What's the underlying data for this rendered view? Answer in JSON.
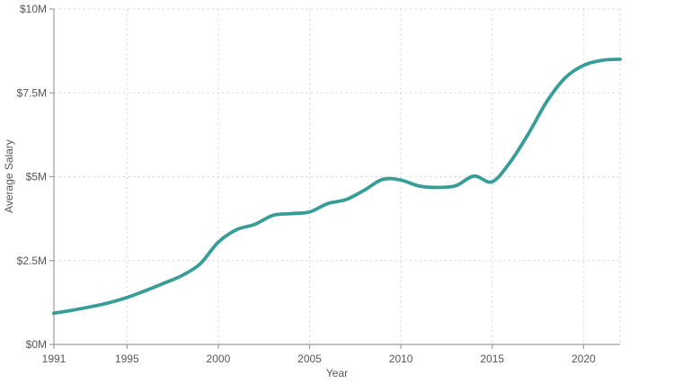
{
  "chart_data": {
    "type": "line",
    "title": "",
    "xlabel": "Year",
    "ylabel": "Average Salary",
    "xlim": [
      1991,
      2022
    ],
    "ylim": [
      0,
      10
    ],
    "grid": "dashed",
    "legend": "none",
    "x_tick_years": [
      1991,
      1995,
      2000,
      2005,
      2010,
      2015,
      2020
    ],
    "x_tick_labels": [
      "1991",
      "1995",
      "2000",
      "2005",
      "2010",
      "2015",
      "2020"
    ],
    "y_tick_values": [
      0,
      2.5,
      5,
      7.5,
      10
    ],
    "y_tick_labels": [
      "$0M",
      "$2.5M",
      "$5M",
      "$7.5M",
      "$10M"
    ],
    "x": [
      1991,
      1992,
      1993,
      1994,
      1995,
      1996,
      1997,
      1998,
      1999,
      2000,
      2001,
      2002,
      2003,
      2004,
      2005,
      2006,
      2007,
      2008,
      2009,
      2010,
      2011,
      2012,
      2013,
      2014,
      2015,
      2016,
      2017,
      2018,
      2019,
      2020,
      2021,
      2022
    ],
    "series": [
      {
        "name": "Average Salary ($M)",
        "values": [
          0.93,
          1.02,
          1.12,
          1.24,
          1.4,
          1.6,
          1.82,
          2.05,
          2.4,
          3.05,
          3.42,
          3.58,
          3.85,
          3.9,
          3.95,
          4.2,
          4.32,
          4.6,
          4.92,
          4.9,
          4.72,
          4.68,
          4.73,
          5.02,
          4.85,
          5.45,
          6.3,
          7.25,
          7.95,
          8.32,
          8.47,
          8.5
        ]
      }
    ],
    "colors": {
      "line": "#379e97",
      "axis": "#9b9b9b",
      "grid": "#d4d4d4",
      "text": "#55575a"
    }
  }
}
